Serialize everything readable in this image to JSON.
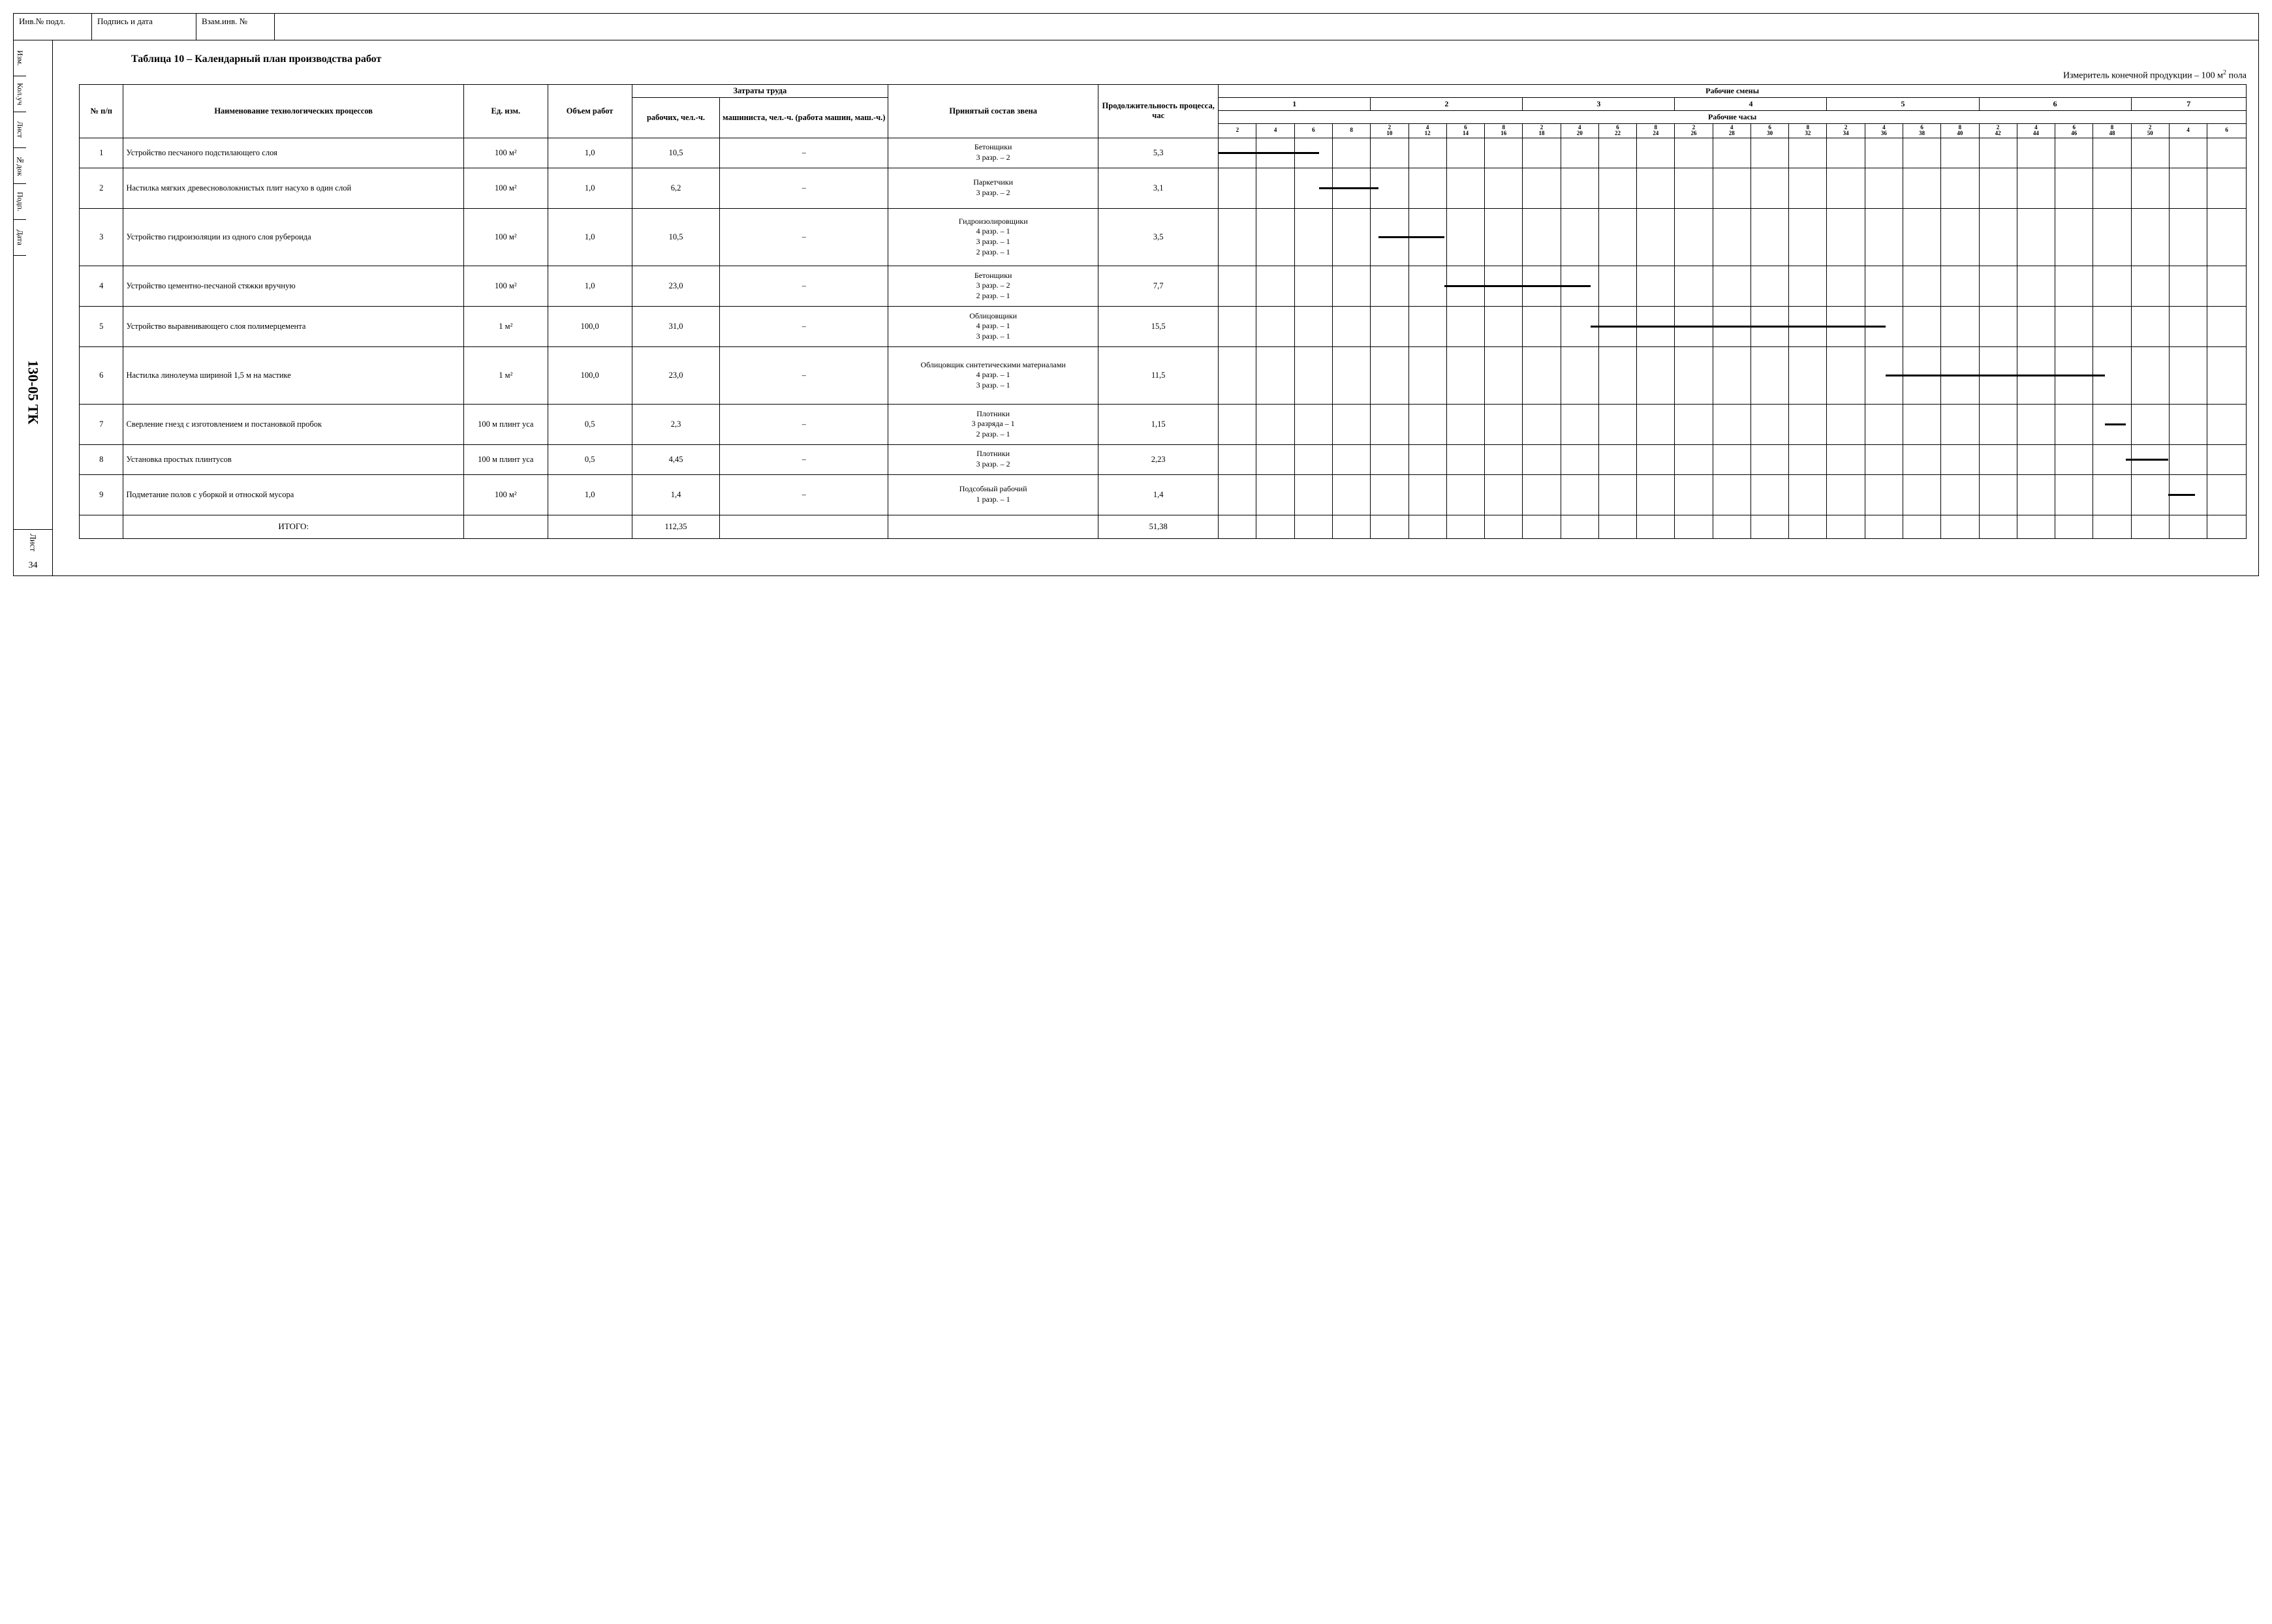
{
  "top_strip": {
    "inv": "Инв.№ подл.",
    "sign": "Подпись и дата",
    "vzam": "Взам.инв. №"
  },
  "stamp": {
    "cells": [
      "Изм.",
      "Кол.уч",
      "Лист",
      "№док",
      "Подп.",
      "Дата"
    ],
    "doc": "130-05 ТК",
    "page_label": "Лист",
    "page_num": "34"
  },
  "title": "Таблица 10 – Календарный план производства работ",
  "subtitle_prefix": "Измеритель конечной продукции – 100 м",
  "subtitle_sup": "2",
  "subtitle_suffix": " пола",
  "headers": {
    "num": "№ п/п",
    "name": "Наименование технологических процессов",
    "unit": "Ед. изм.",
    "volume": "Объем работ",
    "labor": "Затраты труда",
    "labor_man": "рабочих, чел.-ч.",
    "labor_mach": "машиниста, чел.-ч. (работа машин, маш.-ч.)",
    "crew": "Принятый состав звена",
    "duration": "Продолжительность процесса, час",
    "shifts": "Рабочие смены",
    "hours": "Рабочие часы"
  },
  "shift_numbers": [
    "1",
    "2",
    "3",
    "4",
    "5",
    "6",
    "7"
  ],
  "hour_labels": [
    [
      "2",
      "4",
      "6",
      "8"
    ],
    [
      "2\n10",
      "4\n12",
      "6\n14",
      "8\n16"
    ],
    [
      "2\n18",
      "4\n20",
      "6\n22",
      "8\n24"
    ],
    [
      "2\n26",
      "4\n28",
      "6\n30",
      "8\n32"
    ],
    [
      "2\n34",
      "4\n36",
      "6\n38",
      "8\n40"
    ],
    [
      "2\n42",
      "4\n44",
      "6\n46",
      "8\n48"
    ],
    [
      "2\n50",
      "4",
      "6"
    ]
  ],
  "rows": [
    {
      "n": "1",
      "name": "Устройство песчаного подстилающего слоя",
      "unit": "100 м²",
      "vol": "1,0",
      "man": "10,5",
      "mach": "–",
      "crew": "Бетонщики\n3 разр. – 2",
      "dur": "5,3",
      "bar_start": 0,
      "bar_end": 5.3,
      "hclass": "rowh"
    },
    {
      "n": "2",
      "name": "Настилка мягких древесноволокнистых плит насухо в один слой",
      "unit": "100 м²",
      "vol": "1,0",
      "man": "6,2",
      "mach": "–",
      "crew": "Паркетчики\n3 разр. – 2",
      "dur": "3,1",
      "bar_start": 5.3,
      "bar_end": 8.4,
      "hclass": "rowh-med"
    },
    {
      "n": "3",
      "name": "Устройство гидроизоляции из одного слоя рубероида",
      "unit": "100 м²",
      "vol": "1,0",
      "man": "10,5",
      "mach": "–",
      "crew": "Гидроизолировщики\n4 разр. – 1\n3 разр. – 1\n2 разр. – 1",
      "dur": "3,5",
      "bar_start": 8.4,
      "bar_end": 11.9,
      "hclass": "rowh-tall"
    },
    {
      "n": "4",
      "name": "Устройство цементно-песчаной стяжки вручную",
      "unit": "100 м²",
      "vol": "1,0",
      "man": "23,0",
      "mach": "–",
      "crew": "Бетонщики\n3 разр. – 2\n2 разр. – 1",
      "dur": "7,7",
      "bar_start": 11.9,
      "bar_end": 19.6,
      "hclass": "rowh-med"
    },
    {
      "n": "5",
      "name": "Устройство выравнивающего слоя полимерцемента",
      "unit": "1 м²",
      "vol": "100,0",
      "man": "31,0",
      "mach": "–",
      "crew": "Облицовщики\n4 разр. – 1\n3 разр. – 1",
      "dur": "15,5",
      "bar_start": 19.6,
      "bar_end": 35.1,
      "hclass": "rowh-med"
    },
    {
      "n": "6",
      "name": "Настилка линолеума шириной 1,5 м на мастике",
      "unit": "1 м²",
      "vol": "100,0",
      "man": "23,0",
      "mach": "–",
      "crew": "Облицовщик синтетическими материалами\n4 разр. – 1\n3 разр. – 1",
      "dur": "11,5",
      "bar_start": 35.1,
      "bar_end": 46.6,
      "hclass": "rowh-tall"
    },
    {
      "n": "7",
      "name": "Сверление гнезд с изготовлением и постановкой пробок",
      "unit": "100 м плинт уса",
      "vol": "0,5",
      "man": "2,3",
      "mach": "–",
      "crew": "Плотники\n3 разряда – 1\n2 разр. – 1",
      "dur": "1,15",
      "bar_start": 46.6,
      "bar_end": 47.75,
      "hclass": "rowh-med"
    },
    {
      "n": "8",
      "name": "Установка простых плинтусов",
      "unit": "100 м плинт уса",
      "vol": "0,5",
      "man": "4,45",
      "mach": "–",
      "crew": "Плотники\n3 разр. – 2",
      "dur": "2,23",
      "bar_start": 47.75,
      "bar_end": 49.98,
      "hclass": "rowh"
    },
    {
      "n": "9",
      "name": "Подметание полов с уборкой и отноской мусора",
      "unit": "100 м²",
      "vol": "1,0",
      "man": "1,4",
      "mach": "–",
      "crew": "Подсобный рабочий\n1 разр. – 1",
      "dur": "1,4",
      "bar_start": 49.98,
      "bar_end": 51.38,
      "hclass": "rowh-med"
    }
  ],
  "total_label": "ИТОГО:",
  "total_man": "112,35",
  "total_dur": "51,38",
  "gantt": {
    "total_hours": 54,
    "cell_hours": 2,
    "num_cells": 27
  }
}
